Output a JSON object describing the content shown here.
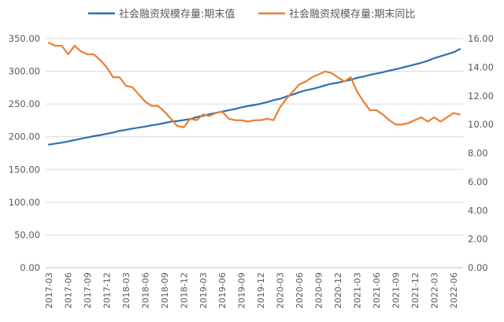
{
  "chart_data": {
    "type": "line",
    "title": "",
    "xlabel": "",
    "ylabel": "",
    "legend_position": "top",
    "grid": true,
    "dual_axis": true,
    "ylim_left": [
      0,
      350
    ],
    "ylim_right": [
      0,
      16
    ],
    "y_ticks_left": [
      "0.00",
      "50.00",
      "100.00",
      "150.00",
      "200.00",
      "250.00",
      "300.00",
      "350.00"
    ],
    "y_ticks_right": [
      "0.00",
      "2.00",
      "4.00",
      "6.00",
      "8.00",
      "10.00",
      "12.00",
      "14.00",
      "16.00"
    ],
    "x": [
      "2017-03",
      "2017-04",
      "2017-05",
      "2017-06",
      "2017-07",
      "2017-08",
      "2017-09",
      "2017-10",
      "2017-11",
      "2017-12",
      "2018-01",
      "2018-02",
      "2018-03",
      "2018-04",
      "2018-05",
      "2018-06",
      "2018-07",
      "2018-08",
      "2018-09",
      "2018-10",
      "2018-11",
      "2018-12",
      "2019-01",
      "2019-02",
      "2019-03",
      "2019-04",
      "2019-05",
      "2019-06",
      "2019-07",
      "2019-08",
      "2019-09",
      "2019-10",
      "2019-11",
      "2019-12",
      "2020-01",
      "2020-02",
      "2020-03",
      "2020-04",
      "2020-05",
      "2020-06",
      "2020-07",
      "2020-08",
      "2020-09",
      "2020-10",
      "2020-11",
      "2020-12",
      "2021-01",
      "2021-02",
      "2021-03",
      "2021-04",
      "2021-05",
      "2021-06",
      "2021-07",
      "2021-08",
      "2021-09",
      "2021-10",
      "2021-11",
      "2021-12",
      "2022-01",
      "2022-02",
      "2022-03",
      "2022-04",
      "2022-05",
      "2022-06",
      "2022-07"
    ],
    "x_tick_labels": [
      "2017-03",
      "2017-06",
      "2017-09",
      "2017-12",
      "2018-03",
      "2018-06",
      "2018-09",
      "2018-12",
      "2019-03",
      "2019-06",
      "2019-09",
      "2019-12",
      "2020-03",
      "2020-06",
      "2020-09",
      "2020-12",
      "2021-03",
      "2021-06",
      "2021-09",
      "2021-12",
      "2022-03",
      "2022-06"
    ],
    "series": [
      {
        "name": "社会融资规模存量:期末值",
        "axis": "left",
        "color": "#2e6fb0",
        "values": [
          188,
          189.5,
          191,
          193,
          195,
          197,
          199,
          201,
          202.5,
          204.5,
          206.5,
          209,
          210.5,
          212.5,
          214,
          215.5,
          217.5,
          219,
          221,
          223,
          224,
          225.5,
          227,
          230,
          232,
          234.5,
          236.5,
          238.5,
          240.5,
          242.5,
          245,
          247,
          248.5,
          250.5,
          253,
          256,
          258,
          261.5,
          264.5,
          268,
          271,
          273,
          275.5,
          278.5,
          281,
          282.5,
          285,
          287,
          290,
          292,
          294.5,
          296.5,
          298.5,
          301,
          303,
          305.5,
          308,
          310.5,
          313,
          316,
          320,
          323,
          326,
          329,
          334
        ]
      },
      {
        "name": "社会融资规模存量:期末同比",
        "axis": "right",
        "color": "#ed7d31",
        "values": [
          15.7,
          15.5,
          15.5,
          14.9,
          15.5,
          15.1,
          14.9,
          14.9,
          14.5,
          14.0,
          13.3,
          13.3,
          12.7,
          12.6,
          12.1,
          11.6,
          11.3,
          11.3,
          10.9,
          10.4,
          9.9,
          9.8,
          10.4,
          10.3,
          10.7,
          10.6,
          10.8,
          10.9,
          10.4,
          10.3,
          10.3,
          10.2,
          10.3,
          10.3,
          10.4,
          10.3,
          11.2,
          11.8,
          12.3,
          12.8,
          13.0,
          13.3,
          13.5,
          13.7,
          13.6,
          13.3,
          13.0,
          13.3,
          12.3,
          11.6,
          11.0,
          11.0,
          10.7,
          10.3,
          10.0,
          10.0,
          10.1,
          10.3,
          10.5,
          10.2,
          10.5,
          10.2,
          10.5,
          10.8,
          10.7
        ]
      }
    ]
  }
}
